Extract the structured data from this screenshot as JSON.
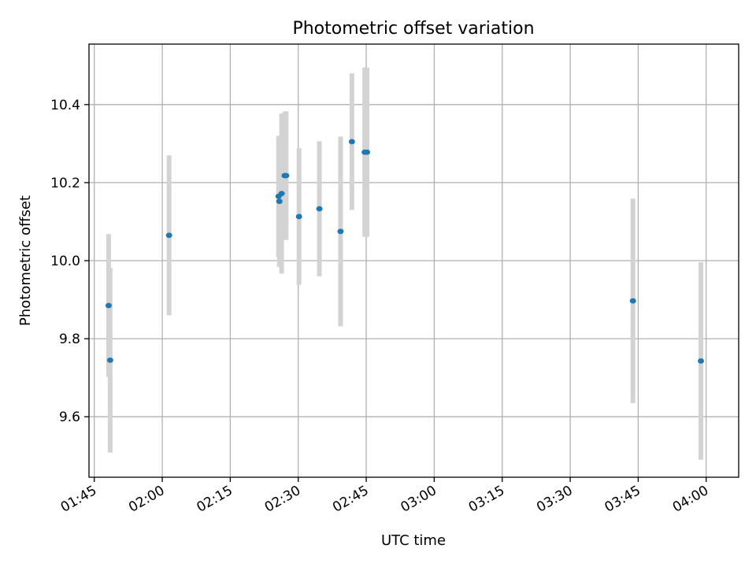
{
  "chart_data": {
    "type": "scatter",
    "title": "Photometric offset variation",
    "xlabel": "UTC time",
    "ylabel": "Photometric offset",
    "x_ticks": [
      "01:45",
      "02:00",
      "02:15",
      "02:30",
      "02:45",
      "03:00",
      "03:15",
      "03:30",
      "03:45",
      "04:00"
    ],
    "y_ticks": [
      "9.6",
      "9.8",
      "10.0",
      "10.2",
      "10.4"
    ],
    "xlim": [
      "01:43:50",
      "04:07:10"
    ],
    "ylim": [
      9.445,
      10.555
    ],
    "grid": true,
    "colors": {
      "points": "#1f77b4",
      "error_bars": "#d3d3d3",
      "grid": "#b0b0b0"
    },
    "series": [
      {
        "points": [
          {
            "x": "01:48:10",
            "y": 9.885,
            "err": 0.183
          },
          {
            "x": "01:48:30",
            "y": 9.745,
            "err": 0.237
          },
          {
            "x": "02:01:30",
            "y": 10.065,
            "err": 0.205
          },
          {
            "x": "02:25:40",
            "y": 10.165,
            "err": 0.155
          },
          {
            "x": "02:25:50",
            "y": 10.152,
            "err": 0.168
          },
          {
            "x": "02:26:20",
            "y": 10.172,
            "err": 0.205
          },
          {
            "x": "02:27:00",
            "y": 10.218,
            "err": 0.163
          },
          {
            "x": "02:27:20",
            "y": 10.218,
            "err": 0.165
          },
          {
            "x": "02:30:10",
            "y": 10.113,
            "err": 0.175
          },
          {
            "x": "02:34:40",
            "y": 10.133,
            "err": 0.173
          },
          {
            "x": "02:39:20",
            "y": 10.075,
            "err": 0.243
          },
          {
            "x": "02:41:50",
            "y": 10.305,
            "err": 0.175
          },
          {
            "x": "02:44:40",
            "y": 10.278,
            "err": 0.217
          },
          {
            "x": "02:45:10",
            "y": 10.278,
            "err": 0.217
          },
          {
            "x": "03:43:50",
            "y": 9.897,
            "err": 0.262
          },
          {
            "x": "03:58:50",
            "y": 9.743,
            "err": 0.253
          }
        ]
      }
    ]
  }
}
